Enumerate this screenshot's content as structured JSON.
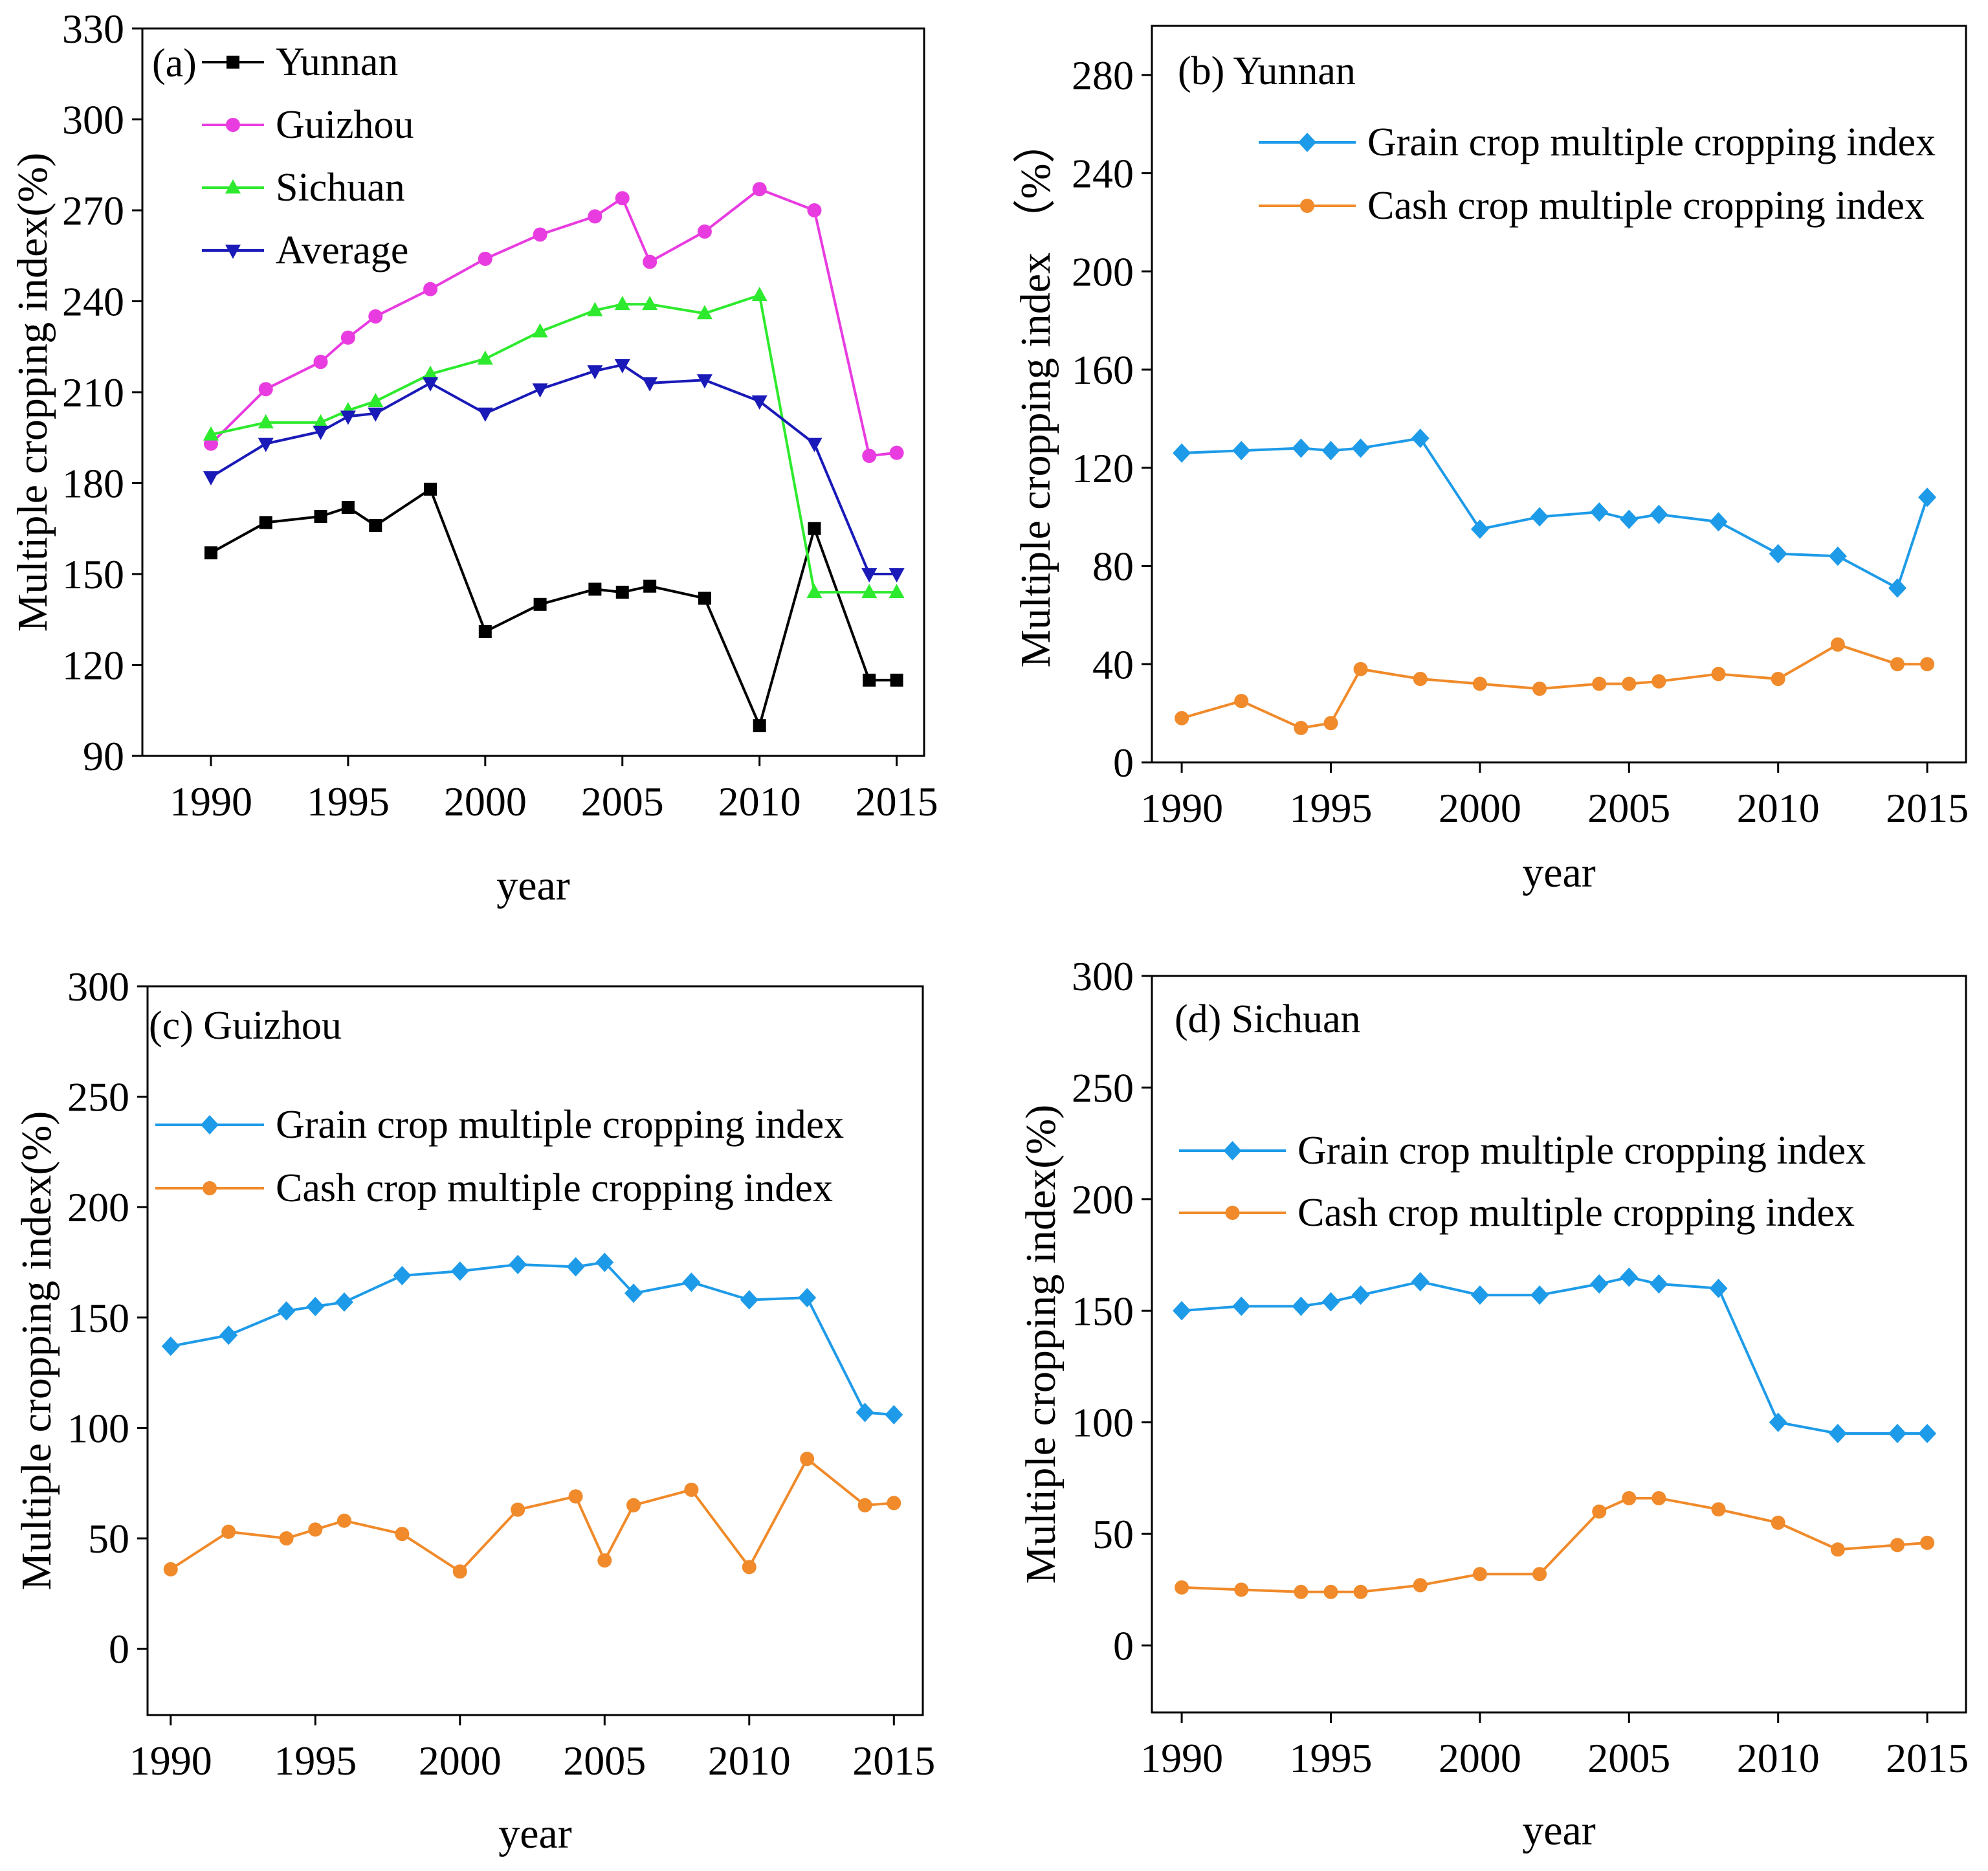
{
  "chart_data": [
    {
      "type": "line",
      "panel_label": "(a)",
      "title": "",
      "xlabel": "year",
      "ylabel": "Multiple cropping index(%)",
      "xlim": [
        1987.5,
        2016
      ],
      "ylim": [
        90,
        330
      ],
      "xticks": [
        1990,
        1995,
        2000,
        2005,
        2010,
        2015
      ],
      "yticks": [
        90,
        120,
        150,
        180,
        210,
        240,
        270,
        300,
        330
      ],
      "legend_position": "top-left",
      "series": [
        {
          "name": "Yunnan",
          "color": "#000000",
          "marker": "square",
          "x": [
            1990,
            1992,
            1994,
            1995,
            1996,
            1998,
            2000,
            2002,
            2004,
            2005,
            2006,
            2008,
            2010,
            2012,
            2014,
            2015
          ],
          "y": [
            157,
            167,
            169,
            172,
            166,
            178,
            131,
            140,
            145,
            144,
            146,
            142,
            100,
            165,
            115,
            115
          ]
        },
        {
          "name": "Guizhou",
          "color": "#e83ce0",
          "marker": "circle",
          "x": [
            1990,
            1992,
            1994,
            1995,
            1996,
            1998,
            2000,
            2002,
            2004,
            2005,
            2006,
            2008,
            2010,
            2012,
            2014,
            2015
          ],
          "y": [
            193,
            211,
            220,
            228,
            235,
            244,
            254,
            262,
            268,
            274,
            253,
            263,
            277,
            270,
            189,
            190
          ]
        },
        {
          "name": "Sichuan",
          "color": "#2eea2e",
          "marker": "triangle-up",
          "x": [
            1990,
            1992,
            1994,
            1995,
            1996,
            1998,
            2000,
            2002,
            2004,
            2005,
            2006,
            2008,
            2010,
            2012,
            2014,
            2015
          ],
          "y": [
            196,
            200,
            200,
            204,
            207,
            216,
            221,
            230,
            237,
            239,
            239,
            236,
            242,
            144,
            144,
            144
          ]
        },
        {
          "name": "Average",
          "color": "#1a1ab8",
          "marker": "triangle-down",
          "x": [
            1990,
            1992,
            1994,
            1995,
            1996,
            1998,
            2000,
            2002,
            2004,
            2005,
            2006,
            2008,
            2010,
            2012,
            2014,
            2015
          ],
          "y": [
            182,
            193,
            197,
            202,
            203,
            213,
            203,
            211,
            217,
            219,
            213,
            214,
            207,
            193,
            150,
            150
          ]
        }
      ]
    },
    {
      "type": "line",
      "panel_label": "(b) Yunnan",
      "title": "",
      "xlabel": "year",
      "ylabel": "Multiple cropping index （%）",
      "xlim": [
        1989,
        2016.3
      ],
      "ylim": [
        0,
        300
      ],
      "xticks": [
        1990,
        1995,
        2000,
        2005,
        2010,
        2015
      ],
      "yticks": [
        0,
        40,
        80,
        120,
        160,
        200,
        240,
        280
      ],
      "legend_position": "top-right",
      "series": [
        {
          "name": "Grain crop multiple cropping index",
          "color": "#1e9be8",
          "marker": "diamond",
          "x": [
            1990,
            1992,
            1994,
            1995,
            1996,
            1998,
            2000,
            2002,
            2004,
            2005,
            2006,
            2008,
            2010,
            2012,
            2014,
            2015
          ],
          "y": [
            126,
            127,
            128,
            127,
            128,
            132,
            95,
            100,
            102,
            99,
            101,
            98,
            85,
            84,
            71,
            108
          ]
        },
        {
          "name": "Cash crop multiple cropping index",
          "color": "#f08a2a",
          "marker": "circle",
          "x": [
            1990,
            1992,
            1994,
            1995,
            1996,
            1998,
            2000,
            2002,
            2004,
            2005,
            2006,
            2008,
            2010,
            2012,
            2014,
            2015
          ],
          "y": [
            18,
            25,
            14,
            16,
            38,
            34,
            32,
            30,
            32,
            32,
            33,
            36,
            34,
            48,
            40,
            40
          ]
        }
      ]
    },
    {
      "type": "line",
      "panel_label": "(c) Guizhou",
      "title": "",
      "xlabel": "year",
      "ylabel": "Multiple cropping index(%)",
      "xlim": [
        1989.2,
        2016
      ],
      "ylim": [
        -30,
        300
      ],
      "xticks": [
        1990,
        1995,
        2000,
        2005,
        2010,
        2015
      ],
      "yticks": [
        0,
        50,
        100,
        150,
        200,
        250,
        300
      ],
      "legend_position": "upper-center",
      "series": [
        {
          "name": "Grain crop multiple cropping index",
          "color": "#1e9be8",
          "marker": "diamond",
          "x": [
            1990,
            1992,
            1994,
            1995,
            1996,
            1998,
            2000,
            2002,
            2004,
            2005,
            2006,
            2008,
            2010,
            2012,
            2014,
            2015
          ],
          "y": [
            137,
            142,
            153,
            155,
            157,
            169,
            171,
            174,
            173,
            175,
            161,
            166,
            158,
            159,
            107,
            106
          ]
        },
        {
          "name": "Cash crop multiple cropping index",
          "color": "#f08a2a",
          "marker": "circle",
          "x": [
            1990,
            1992,
            1994,
            1995,
            1996,
            1998,
            2000,
            2002,
            2004,
            2005,
            2006,
            2008,
            2010,
            2012,
            2014,
            2015
          ],
          "y": [
            36,
            53,
            50,
            54,
            58,
            52,
            35,
            63,
            69,
            40,
            65,
            72,
            37,
            86,
            65,
            66
          ]
        }
      ]
    },
    {
      "type": "line",
      "panel_label": "(d) Sichuan",
      "title": "",
      "xlabel": "year",
      "ylabel": "Multiple cropping index(%)",
      "xlim": [
        1989,
        2016.3
      ],
      "ylim": [
        -30,
        300
      ],
      "xticks": [
        1990,
        1995,
        2000,
        2005,
        2010,
        2015
      ],
      "yticks": [
        0,
        50,
        100,
        150,
        200,
        250,
        300
      ],
      "legend_position": "upper-center",
      "series": [
        {
          "name": "Grain crop multiple cropping index",
          "color": "#1e9be8",
          "marker": "diamond",
          "x": [
            1990,
            1992,
            1994,
            1995,
            1996,
            1998,
            2000,
            2002,
            2004,
            2005,
            2006,
            2008,
            2010,
            2012,
            2014,
            2015
          ],
          "y": [
            150,
            152,
            152,
            154,
            157,
            163,
            157,
            157,
            162,
            165,
            162,
            160,
            100,
            95,
            95,
            95
          ]
        },
        {
          "name": "Cash crop multiple cropping index",
          "color": "#f08a2a",
          "marker": "circle",
          "x": [
            1990,
            1992,
            1994,
            1995,
            1996,
            1998,
            2000,
            2002,
            2004,
            2005,
            2006,
            2008,
            2010,
            2012,
            2014,
            2015
          ],
          "y": [
            26,
            25,
            24,
            24,
            24,
            27,
            32,
            32,
            60,
            66,
            66,
            61,
            55,
            43,
            45,
            46
          ]
        }
      ]
    }
  ]
}
